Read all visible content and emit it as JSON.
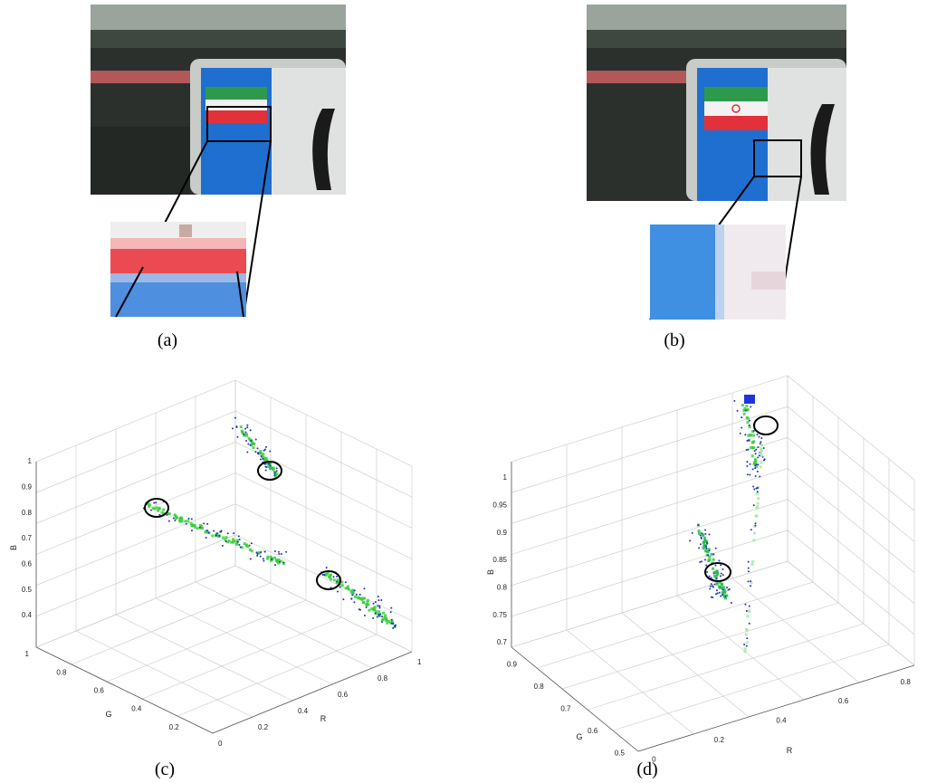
{
  "panels": [
    {
      "caption": "(a)"
    },
    {
      "caption": "(b)"
    },
    {
      "caption": "(c)",
      "z_label": "B",
      "y_label": "G",
      "x_label": "R",
      "z_ticks": [
        "1",
        "0.9",
        "0.8",
        "0.7",
        "0.6",
        "0.5",
        "0.4"
      ],
      "y_ticks": [
        "1",
        "0.8",
        "0.6",
        "0.4",
        "0.2"
      ],
      "x_ticks": [
        "0",
        "0.2",
        "0.4",
        "0.6",
        "0.8",
        "1"
      ]
    },
    {
      "caption": "(d)",
      "z_label": "B",
      "y_label": "G",
      "x_label": "R",
      "z_ticks": [
        "1",
        "0.95",
        "0.9",
        "0.85",
        "0.8",
        "0.75",
        "0.7"
      ],
      "y_ticks": [
        "0.9",
        "0.8",
        "0.7",
        "0.6",
        "0.5"
      ],
      "x_ticks": [
        "0",
        "0.2",
        "0.4",
        "0.6",
        "0.8"
      ]
    }
  ]
}
